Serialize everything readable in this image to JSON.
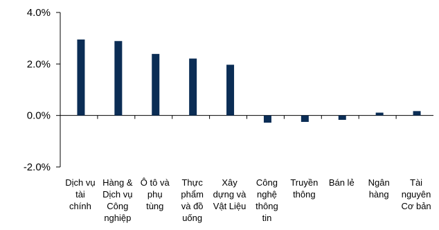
{
  "chart_data": {
    "type": "bar",
    "categories": [
      [
        "Dịch vụ",
        "tài",
        "chính"
      ],
      [
        "Hàng &",
        "Dịch vụ",
        "Công",
        "nghiệp"
      ],
      [
        "Ô tô và",
        "phụ",
        "tùng"
      ],
      [
        "Thực",
        "phẩm",
        "và đồ",
        "uống"
      ],
      [
        "Xây",
        "dựng và",
        "Vật Liệu"
      ],
      [
        "Công",
        "nghệ",
        "thông",
        "tin"
      ],
      [
        "Truyền",
        "thông"
      ],
      [
        "Bán lẻ"
      ],
      [
        "Ngân",
        "hàng"
      ],
      [
        "Tài",
        "nguyên",
        "Cơ bản"
      ]
    ],
    "values": [
      2.95,
      2.89,
      2.39,
      2.21,
      1.97,
      -0.28,
      -0.25,
      -0.17,
      0.11,
      0.17
    ],
    "unit": "%",
    "ylim": [
      -2.0,
      4.0
    ],
    "yticks": [
      -2.0,
      0.0,
      2.0,
      4.0
    ],
    "ytick_labels": [
      "-2.0%",
      "0.0%",
      "2.0%",
      "4.0%"
    ],
    "grid": false,
    "colors": {
      "bar": "#0b2d55",
      "axis": "#000000"
    }
  }
}
